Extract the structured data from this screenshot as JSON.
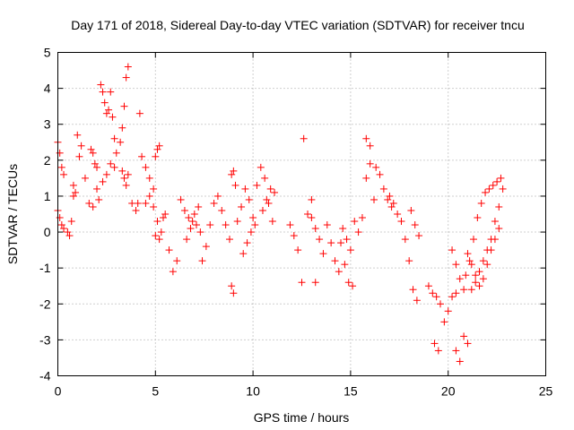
{
  "chart_data": {
    "type": "scatter",
    "title": "Day 171 of 2018, Sidereal Day-to-day VTEC variation (SDTVAR) for receiver tncu",
    "xlabel": "GPS time / hours",
    "ylabel": "SDTVAR / TECUs",
    "xlim": [
      0,
      25
    ],
    "ylim": [
      -4,
      5
    ],
    "xticks": [
      "0",
      "5",
      "10",
      "15",
      "20",
      "25"
    ],
    "yticks": [
      "-4",
      "-3",
      "-2",
      "-1",
      "0",
      "1",
      "2",
      "3",
      "4",
      "5"
    ],
    "grid": true,
    "marker": "+",
    "color": "#ff0000",
    "series": [
      {
        "name": "SDTVAR",
        "arcs": [
          {
            "x": [
              0.0,
              0.1,
              0.2,
              0.3
            ],
            "y": [
              2.5,
              2.2,
              1.8,
              1.6
            ]
          },
          {
            "x": [
              0.0,
              0.1,
              0.2,
              0.3
            ],
            "y": [
              0.6,
              0.4,
              0.2,
              0.1
            ]
          },
          {
            "x": [
              0.5,
              0.6,
              0.7,
              0.8
            ],
            "y": [
              0.0,
              -0.1,
              0.3,
              1.0
            ]
          },
          {
            "x": [
              0.8,
              0.9,
              1.0,
              1.1
            ],
            "y": [
              1.3,
              1.1,
              2.7,
              2.1
            ]
          },
          {
            "x": [
              1.2,
              1.4,
              1.6,
              1.8,
              2.0
            ],
            "y": [
              2.4,
              1.5,
              0.8,
              0.7,
              1.8
            ]
          },
          {
            "x": [
              1.7,
              1.8,
              1.9,
              2.0,
              2.1
            ],
            "y": [
              2.3,
              2.2,
              1.9,
              1.2,
              0.9
            ]
          },
          {
            "x": [
              2.2,
              2.3,
              2.4,
              2.5,
              2.6,
              2.7,
              2.8,
              2.9,
              3.0
            ],
            "y": [
              4.1,
              3.9,
              3.6,
              3.3,
              3.4,
              3.9,
              3.2,
              2.6,
              2.2
            ]
          },
          {
            "x": [
              2.3,
              2.5,
              2.7,
              2.9
            ],
            "y": [
              1.4,
              1.6,
              1.9,
              1.8
            ]
          },
          {
            "x": [
              3.2,
              3.3,
              3.4,
              3.5,
              3.6
            ],
            "y": [
              2.5,
              2.9,
              3.5,
              4.3,
              4.6
            ]
          },
          {
            "x": [
              3.3,
              3.4,
              3.5,
              3.6
            ],
            "y": [
              1.7,
              1.5,
              1.3,
              1.6
            ]
          },
          {
            "x": [
              3.8,
              4.0,
              4.1,
              4.2
            ],
            "y": [
              0.8,
              0.6,
              0.8,
              3.3
            ]
          },
          {
            "x": [
              4.3,
              4.5,
              4.7,
              4.9,
              5.0,
              5.1,
              5.2
            ],
            "y": [
              2.1,
              1.8,
              1.5,
              1.2,
              2.1,
              2.3,
              2.4
            ]
          },
          {
            "x": [
              4.5,
              4.7,
              4.9,
              5.1,
              5.3
            ],
            "y": [
              0.8,
              1.0,
              0.7,
              0.3,
              0.0
            ]
          },
          {
            "x": [
              5.0,
              5.2,
              5.4
            ],
            "y": [
              -0.1,
              -0.2,
              0.4
            ]
          },
          {
            "x": [
              5.5,
              5.7,
              5.9,
              6.1
            ],
            "y": [
              0.5,
              -0.5,
              -1.1,
              -0.8
            ]
          },
          {
            "x": [
              6.3,
              6.5,
              6.7,
              6.9,
              7.1,
              7.3
            ],
            "y": [
              0.9,
              0.6,
              0.4,
              0.3,
              0.2,
              0.0
            ]
          },
          {
            "x": [
              6.6,
              6.8,
              7.0,
              7.2
            ],
            "y": [
              -0.2,
              0.1,
              0.5,
              0.7
            ]
          },
          {
            "x": [
              7.4,
              7.6,
              7.8,
              8.0
            ],
            "y": [
              -0.8,
              -0.4,
              0.2,
              0.8
            ]
          },
          {
            "x": [
              8.2,
              8.4,
              8.6,
              8.8
            ],
            "y": [
              1.0,
              0.6,
              0.2,
              -0.2
            ]
          },
          {
            "x": [
              8.9,
              9.0
            ],
            "y": [
              -1.5,
              -1.7
            ]
          },
          {
            "x": [
              8.9,
              9.0,
              9.1
            ],
            "y": [
              1.6,
              1.7,
              1.3
            ]
          },
          {
            "x": [
              9.2,
              9.4,
              9.6,
              9.8,
              10.0
            ],
            "y": [
              0.3,
              0.7,
              1.2,
              0.9,
              0.4
            ]
          },
          {
            "x": [
              9.5,
              9.7,
              9.9,
              10.1
            ],
            "y": [
              -0.6,
              -0.3,
              0.0,
              0.2
            ]
          },
          {
            "x": [
              10.2,
              10.4,
              10.6,
              10.8,
              11.0
            ],
            "y": [
              1.3,
              1.8,
              1.5,
              0.8,
              0.3
            ]
          },
          {
            "x": [
              10.5,
              10.7,
              10.9,
              11.1
            ],
            "y": [
              0.6,
              0.9,
              1.2,
              1.1
            ]
          },
          {
            "x": [
              11.9,
              12.1,
              12.3,
              12.5
            ],
            "y": [
              0.2,
              -0.1,
              -0.5,
              -1.4
            ]
          },
          {
            "x": [
              12.6,
              12.8,
              13.0,
              13.2
            ],
            "y": [
              2.6,
              0.5,
              0.9,
              -1.4
            ]
          },
          {
            "x": [
              13.0,
              13.2,
              13.4,
              13.6
            ],
            "y": [
              0.4,
              0.1,
              -0.2,
              -0.6
            ]
          },
          {
            "x": [
              13.8,
              14.0,
              14.2,
              14.4
            ],
            "y": [
              0.2,
              -0.3,
              -0.8,
              -1.1
            ]
          },
          {
            "x": [
              14.5,
              14.7,
              14.9,
              15.1
            ],
            "y": [
              -0.3,
              -0.9,
              -1.4,
              -1.5
            ]
          },
          {
            "x": [
              14.6,
              14.8,
              15.0
            ],
            "y": [
              0.1,
              -0.2,
              -0.5
            ]
          },
          {
            "x": [
              15.2,
              15.4,
              15.6,
              15.8,
              16.0
            ],
            "y": [
              0.3,
              0.0,
              0.4,
              1.5,
              2.4
            ]
          },
          {
            "x": [
              15.8,
              16.0,
              16.2
            ],
            "y": [
              2.6,
              1.9,
              0.9
            ]
          },
          {
            "x": [
              16.3,
              16.5,
              16.7,
              16.9,
              17.1
            ],
            "y": [
              1.8,
              1.6,
              1.2,
              0.9,
              0.7
            ]
          },
          {
            "x": [
              17.0,
              17.2,
              17.4,
              17.6
            ],
            "y": [
              1.0,
              0.8,
              0.5,
              0.3
            ]
          },
          {
            "x": [
              17.8,
              18.0,
              18.2,
              18.4
            ],
            "y": [
              -0.2,
              -0.8,
              -1.6,
              -1.9
            ]
          },
          {
            "x": [
              18.1,
              18.3,
              18.5
            ],
            "y": [
              0.6,
              0.2,
              -0.1
            ]
          },
          {
            "x": [
              19.0,
              19.2,
              19.4,
              19.6
            ],
            "y": [
              -1.5,
              -1.7,
              -1.8,
              -2.0
            ]
          },
          {
            "x": [
              19.3,
              19.5
            ],
            "y": [
              -3.1,
              -3.3
            ]
          },
          {
            "x": [
              19.8,
              20.0,
              20.2,
              20.4
            ],
            "y": [
              -2.5,
              -2.2,
              -1.8,
              -1.7
            ]
          },
          {
            "x": [
              20.4,
              20.6
            ],
            "y": [
              -3.3,
              -3.6
            ]
          },
          {
            "x": [
              20.8,
              21.0
            ],
            "y": [
              -2.9,
              -3.1
            ]
          },
          {
            "x": [
              20.2,
              20.4,
              20.6,
              20.8
            ],
            "y": [
              -0.5,
              -0.9,
              -1.3,
              -1.6
            ]
          },
          {
            "x": [
              20.9,
              21.1,
              21.3,
              21.5,
              21.7,
              21.9,
              22.1,
              22.3,
              22.5,
              22.7
            ],
            "y": [
              -1.2,
              -0.8,
              -0.2,
              0.4,
              0.8,
              1.1,
              1.2,
              1.3,
              1.4,
              1.5
            ]
          },
          {
            "x": [
              21.2,
              21.4,
              21.6,
              21.8,
              22.0,
              22.2,
              22.4,
              22.6,
              22.8
            ],
            "y": [
              -1.6,
              -1.4,
              -1.1,
              -0.8,
              -0.5,
              -0.2,
              0.3,
              0.7,
              1.2
            ]
          },
          {
            "x": [
              21.0,
              21.2,
              21.4,
              21.6,
              21.8,
              22.0,
              22.2,
              22.4,
              22.6
            ],
            "y": [
              -0.6,
              -0.9,
              -1.2,
              -1.5,
              -1.3,
              -0.9,
              -0.5,
              -0.2,
              0.1
            ]
          }
        ]
      }
    ]
  }
}
